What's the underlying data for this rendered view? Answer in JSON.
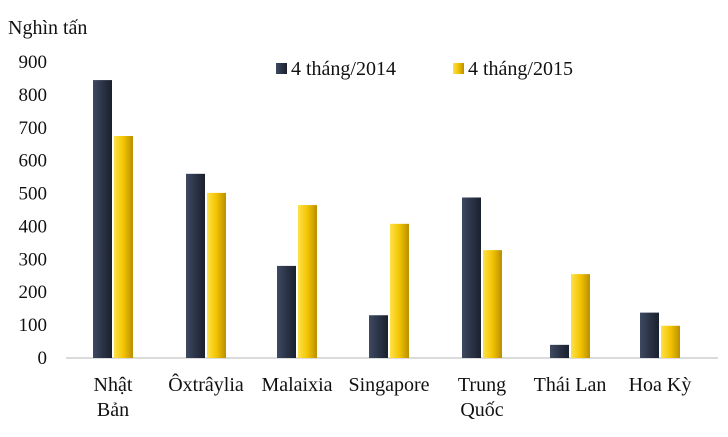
{
  "chart_data": {
    "type": "bar",
    "ylabel": "Nghìn tấn",
    "categories": [
      [
        "Nhật",
        "Bản"
      ],
      [
        "Ôxtrâylia"
      ],
      [
        "Malaixia"
      ],
      [
        "Singapore"
      ],
      [
        "Trung",
        "Quốc"
      ],
      [
        "Thái Lan"
      ],
      [
        "Hoa Kỳ"
      ]
    ],
    "series": [
      {
        "name": "4 tháng/2014",
        "color": "#2b3447",
        "values": [
          845,
          560,
          280,
          130,
          488,
          40,
          138
        ]
      },
      {
        "name": "4 tháng/2015",
        "color": "#f2c300",
        "values": [
          675,
          502,
          465,
          408,
          328,
          255,
          98
        ]
      }
    ],
    "ylim": [
      0,
      900
    ],
    "yticks": [
      "0",
      "100",
      "200",
      "300",
      "400",
      "500",
      "600",
      "700",
      "800",
      "900"
    ],
    "legend": "top-right",
    "grid": false
  }
}
